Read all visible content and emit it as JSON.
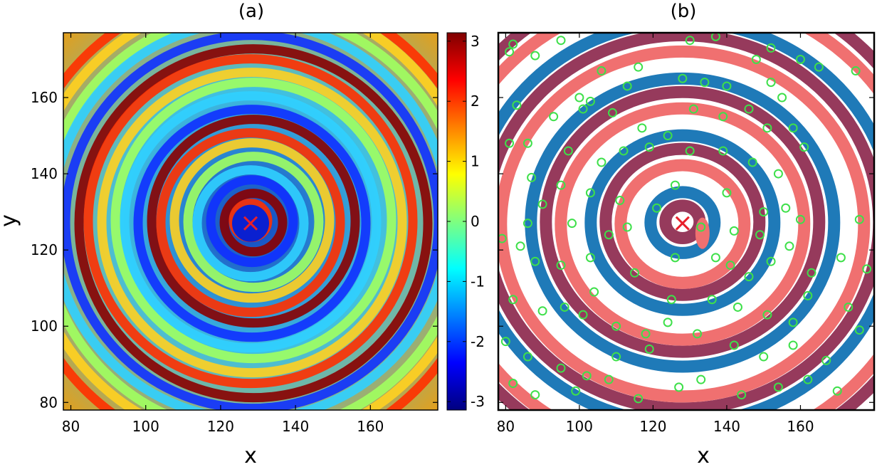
{
  "chart_data": [
    {
      "type": "heatmap",
      "panel_label": "(a)",
      "xlabel": "x",
      "ylabel": "y",
      "xlim": [
        78,
        178
      ],
      "ylim": [
        78,
        177
      ],
      "xticks": [
        "80",
        "100",
        "120",
        "140",
        "160"
      ],
      "xtick_values": [
        80,
        100,
        120,
        140,
        160
      ],
      "yticks": [
        "80",
        "100",
        "120",
        "140",
        "160"
      ],
      "ytick_values": [
        80,
        100,
        120,
        140,
        160
      ],
      "colorbar": {
        "range": [
          -3.14,
          3.14
        ],
        "tick_labels": [
          "3",
          "2",
          "1",
          "0",
          "-1",
          "-2",
          "-3"
        ],
        "tick_values": [
          3,
          2,
          1,
          0,
          -1,
          -2,
          -3
        ],
        "colormap": "jet"
      },
      "pattern": "concentric phase rings (spiral wave) centred near the marker",
      "marker": {
        "symbol": "×",
        "x": 128,
        "y": 127,
        "color": "#e8202a"
      },
      "grid": false
    },
    {
      "type": "scatter",
      "panel_label": "(b)",
      "xlabel": "x",
      "ylabel": "",
      "xlim": [
        78,
        180
      ],
      "ylim": [
        78,
        177
      ],
      "xticks": [
        "80",
        "100",
        "120",
        "140",
        "160"
      ],
      "xtick_values": [
        80,
        100,
        120,
        140,
        160
      ],
      "yticks": [],
      "region_colors": {
        "light_red": "#f07070",
        "dark_red": "#963a5c",
        "blue": "#1f7ab8",
        "white": "#ffffff"
      },
      "marker": {
        "symbol": "×",
        "x": 128,
        "y": 127,
        "color": "#e8202a"
      },
      "points_color": "#3ee04a",
      "points": [
        [
          81,
          172
        ],
        [
          82,
          174
        ],
        [
          95,
          175
        ],
        [
          106,
          167
        ],
        [
          100,
          160
        ],
        [
          103,
          159
        ],
        [
          113,
          163
        ],
        [
          130,
          175
        ],
        [
          137,
          176
        ],
        [
          152,
          173
        ],
        [
          148,
          170
        ],
        [
          160,
          170
        ],
        [
          165,
          168
        ],
        [
          175,
          167
        ],
        [
          88,
          171
        ],
        [
          116,
          168
        ],
        [
          128,
          165
        ],
        [
          134,
          164
        ],
        [
          140,
          163
        ],
        [
          152,
          164
        ],
        [
          155,
          160
        ],
        [
          83,
          158
        ],
        [
          93,
          155
        ],
        [
          101,
          157
        ],
        [
          109,
          156
        ],
        [
          117,
          152
        ],
        [
          124,
          150
        ],
        [
          131,
          157
        ],
        [
          139,
          155
        ],
        [
          146,
          157
        ],
        [
          151,
          152
        ],
        [
          158,
          152
        ],
        [
          81,
          148
        ],
        [
          86,
          148
        ],
        [
          97,
          146
        ],
        [
          106,
          143
        ],
        [
          112,
          146
        ],
        [
          119,
          147
        ],
        [
          130,
          146
        ],
        [
          139,
          146
        ],
        [
          147,
          143
        ],
        [
          161,
          147
        ],
        [
          154,
          140
        ],
        [
          87,
          139
        ],
        [
          95,
          137
        ],
        [
          103,
          135
        ],
        [
          111,
          133
        ],
        [
          121,
          131
        ],
        [
          126,
          137
        ],
        [
          140,
          135
        ],
        [
          150,
          130
        ],
        [
          160,
          128
        ],
        [
          79,
          123
        ],
        [
          84,
          121
        ],
        [
          88,
          117
        ],
        [
          95,
          116
        ],
        [
          103,
          118
        ],
        [
          108,
          124
        ],
        [
          113,
          126
        ],
        [
          142,
          125
        ],
        [
          157,
          121
        ],
        [
          82,
          107
        ],
        [
          90,
          104
        ],
        [
          96,
          105
        ],
        [
          101,
          103
        ],
        [
          110,
          100
        ],
        [
          119,
          94
        ],
        [
          125,
          107
        ],
        [
          136,
          107
        ],
        [
          143,
          105
        ],
        [
          151,
          103
        ],
        [
          158,
          101
        ],
        [
          162,
          108
        ],
        [
          173,
          105
        ],
        [
          80,
          96
        ],
        [
          86,
          92
        ],
        [
          95,
          89
        ],
        [
          102,
          87
        ],
        [
          110,
          92
        ],
        [
          118,
          98
        ],
        [
          124,
          101
        ],
        [
          132,
          98
        ],
        [
          142,
          95
        ],
        [
          150,
          92
        ],
        [
          158,
          95
        ],
        [
          167,
          91
        ],
        [
          82,
          85
        ],
        [
          88,
          82
        ],
        [
          99,
          83
        ],
        [
          108,
          86
        ],
        [
          116,
          81
        ],
        [
          127,
          84
        ],
        [
          133,
          86
        ],
        [
          144,
          82
        ],
        [
          154,
          84
        ],
        [
          162,
          86
        ],
        [
          170,
          83
        ],
        [
          176,
          99
        ],
        [
          178,
          115
        ],
        [
          90,
          132
        ],
        [
          98,
          127
        ],
        [
          133,
          126
        ],
        [
          137,
          118
        ],
        [
          146,
          113
        ],
        [
          152,
          117
        ],
        [
          163,
          114
        ],
        [
          171,
          118
        ],
        [
          176,
          128
        ],
        [
          86,
          127
        ],
        [
          104,
          109
        ],
        [
          115,
          114
        ],
        [
          126,
          118
        ],
        [
          141,
          116
        ],
        [
          149,
          124
        ],
        [
          156,
          131
        ]
      ]
    }
  ]
}
